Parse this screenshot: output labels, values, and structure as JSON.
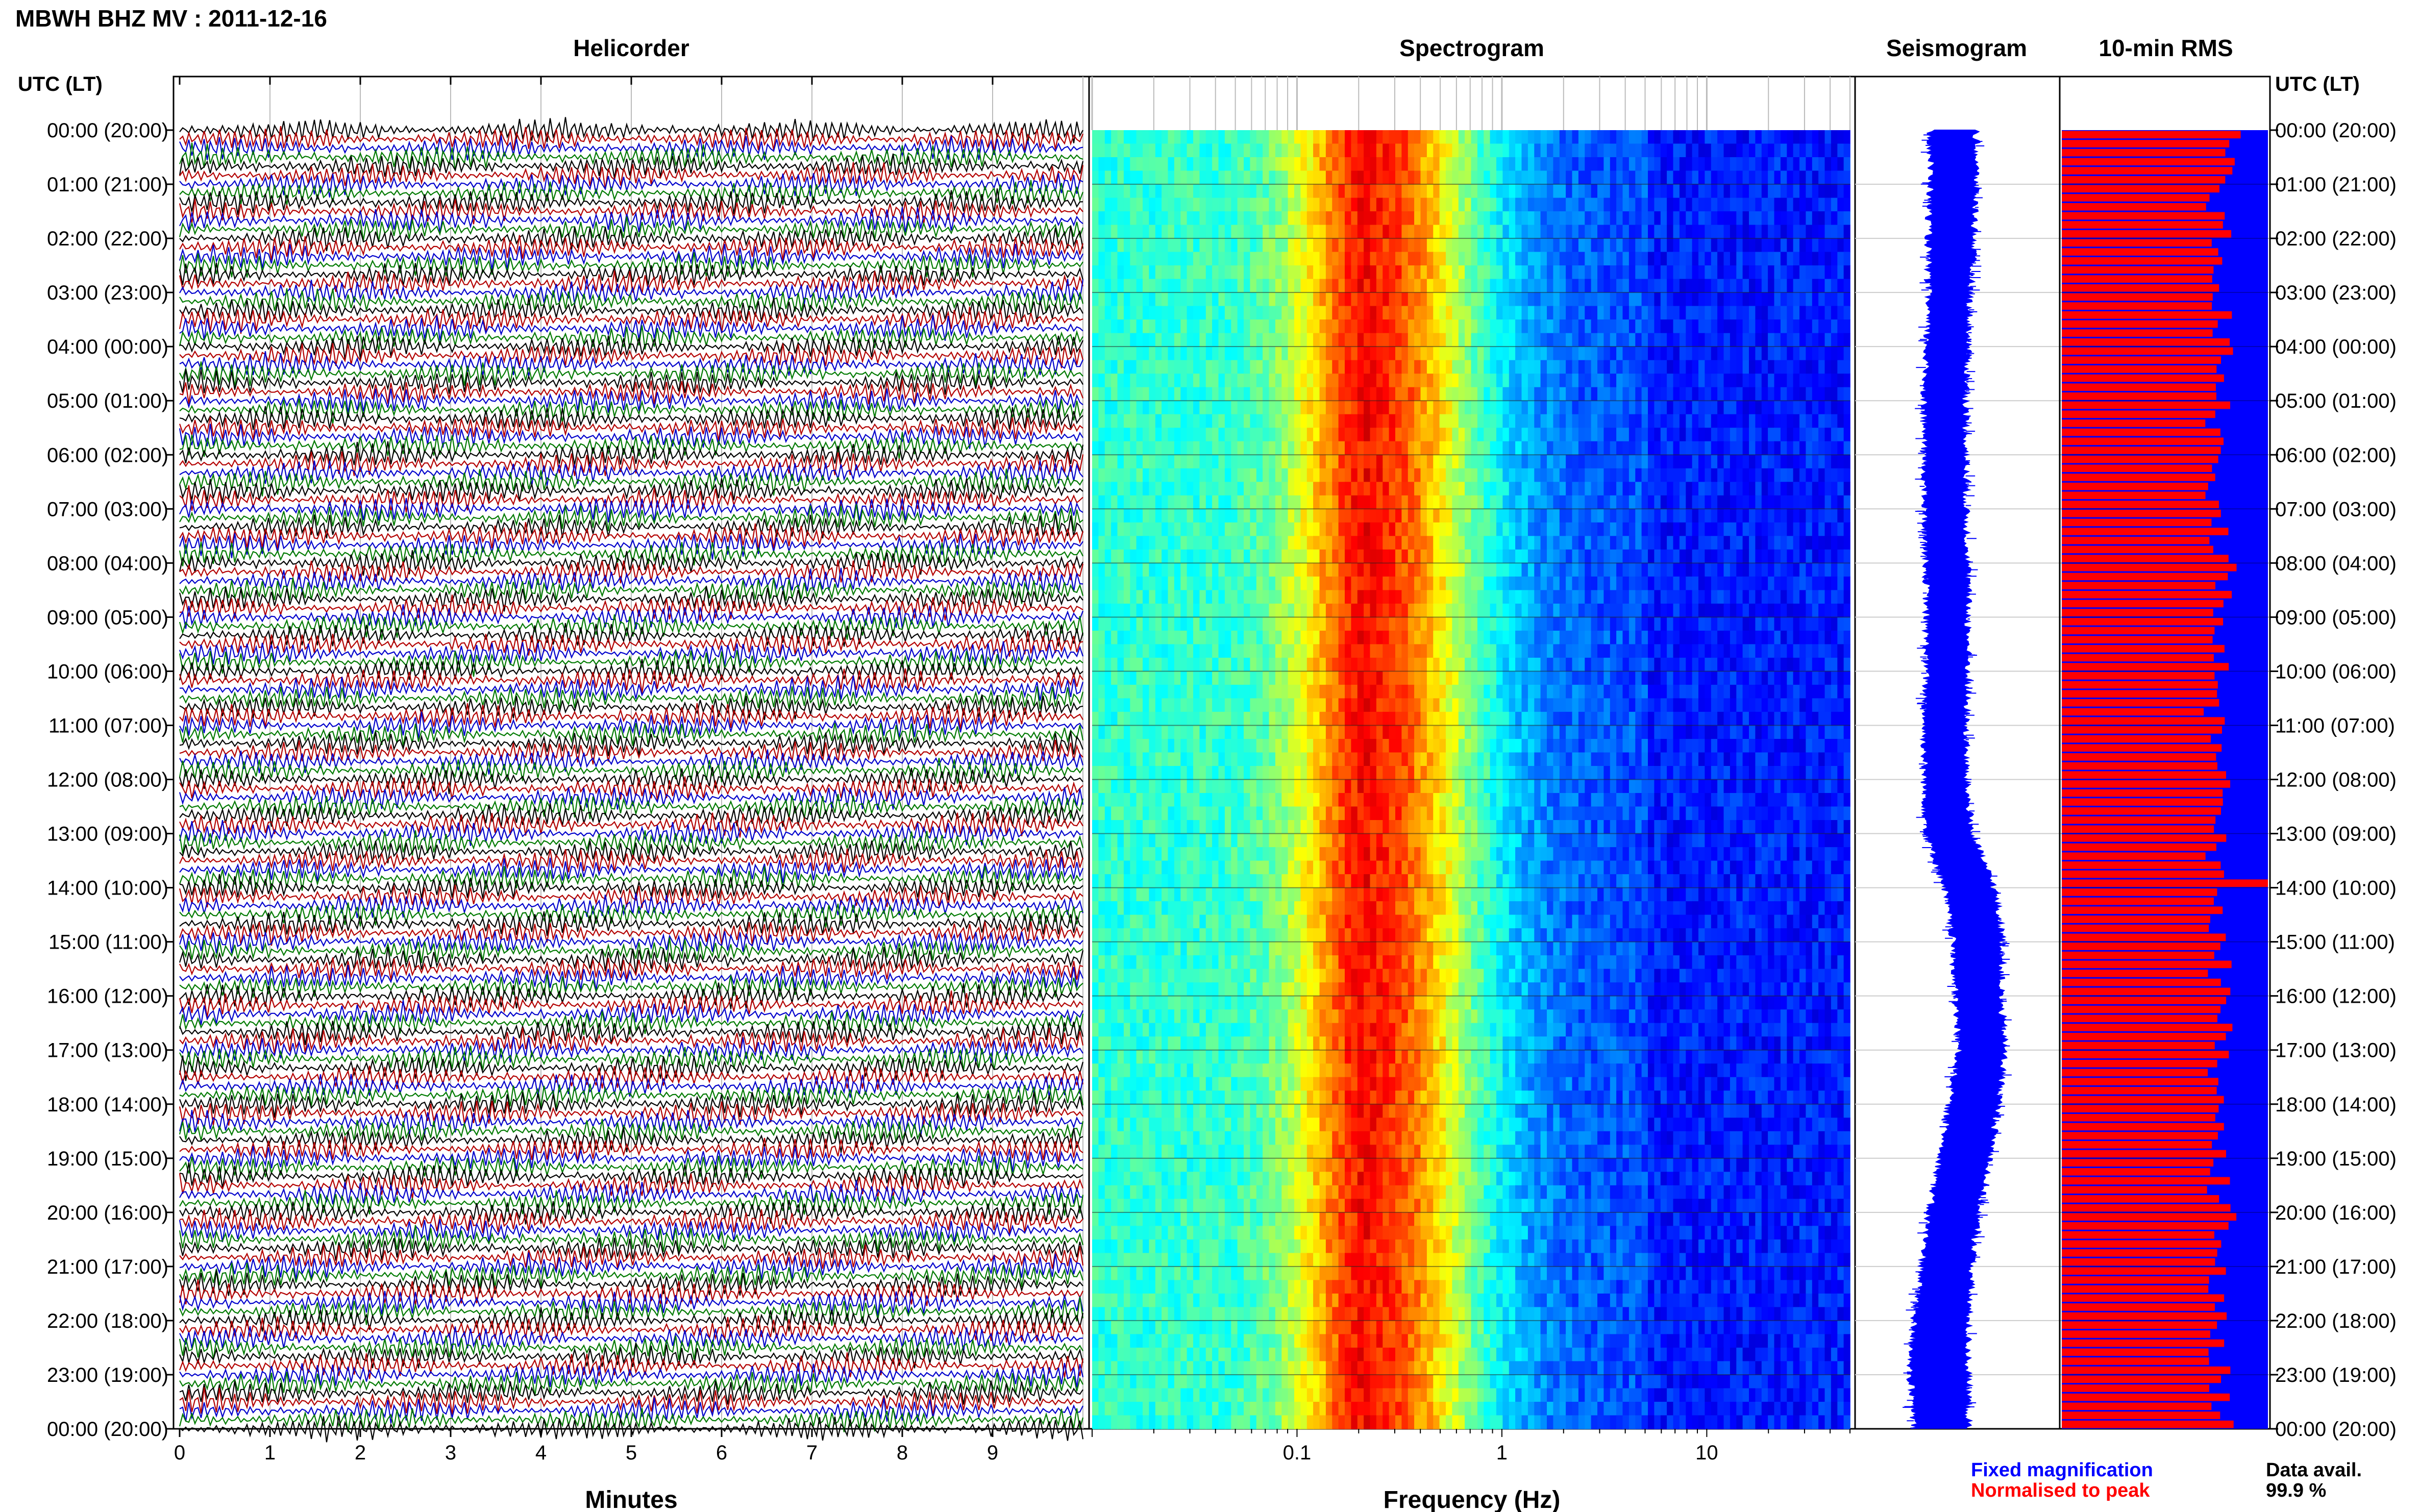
{
  "page": {
    "title": "MBWH BHZ MV : 2011-12-16",
    "panels": [
      "Helicorder",
      "Spectrogram",
      "Seismogram",
      "10-min RMS"
    ],
    "axis_header_left": "UTC (LT)",
    "axis_header_right": "UTC (LT)",
    "legend_fixed": "Fixed magnification",
    "legend_normalised": "Normalised to peak",
    "data_avail_label": "Data avail.",
    "data_avail_value": "99.9 %"
  },
  "colors": {
    "trace_cycle": [
      "#000000",
      "#b30000",
      "#0000cc",
      "#007a00"
    ],
    "fixed_magnification": "#0000ff",
    "normalised_to_peak": "#ff0000"
  },
  "chart_data": [
    {
      "type": "line",
      "panel": "Helicorder",
      "xlabel": "Minutes",
      "x_ticks": [
        "0",
        "1",
        "2",
        "3",
        "4",
        "5",
        "6",
        "7",
        "8",
        "9"
      ],
      "xlim": [
        0,
        10
      ],
      "y_ticks": [
        "00:00 (20:00)",
        "01:00 (21:00)",
        "02:00 (22:00)",
        "03:00 (23:00)",
        "04:00 (00:00)",
        "05:00 (01:00)",
        "06:00 (02:00)",
        "07:00 (03:00)",
        "08:00 (04:00)",
        "09:00 (05:00)",
        "10:00 (06:00)",
        "11:00 (07:00)",
        "12:00 (08:00)",
        "13:00 (09:00)",
        "14:00 (10:00)",
        "15:00 (11:00)",
        "16:00 (12:00)",
        "17:00 (13:00)",
        "18:00 (14:00)",
        "19:00 (15:00)",
        "20:00 (16:00)",
        "21:00 (17:00)",
        "22:00 (18:00)",
        "23:00 (19:00)",
        "00:00 (20:00)"
      ],
      "ylim_hours": [
        0,
        24
      ],
      "rows_per_hour": 6,
      "row_minutes": 10
    },
    {
      "type": "heatmap",
      "panel": "Spectrogram",
      "xlabel": "Frequency (Hz)",
      "x_scale": "log",
      "x_ticks": [
        "0.1",
        "1",
        "10"
      ],
      "xlim_hz": [
        0.01,
        50
      ],
      "peak_band_hz": [
        0.15,
        0.35
      ],
      "ylim_hours": [
        0,
        24
      ]
    },
    {
      "type": "line",
      "panel": "Seismogram",
      "ylim_hours": [
        0,
        24
      ],
      "envelope_hours": [
        0,
        1,
        2,
        3,
        4,
        5,
        6,
        7,
        8,
        9,
        10,
        11,
        12,
        13,
        14,
        15,
        16,
        17,
        18,
        19,
        20,
        21,
        22,
        23,
        24
      ],
      "envelope_center": [
        0.48,
        0.48,
        0.47,
        0.46,
        0.45,
        0.44,
        0.44,
        0.44,
        0.45,
        0.45,
        0.45,
        0.44,
        0.44,
        0.46,
        0.56,
        0.6,
        0.6,
        0.62,
        0.58,
        0.54,
        0.48,
        0.45,
        0.42,
        0.41,
        0.42
      ],
      "envelope_halfwidth": [
        0.11,
        0.11,
        0.11,
        0.1,
        0.1,
        0.1,
        0.1,
        0.1,
        0.1,
        0.1,
        0.1,
        0.1,
        0.1,
        0.11,
        0.12,
        0.12,
        0.11,
        0.11,
        0.12,
        0.12,
        0.12,
        0.12,
        0.13,
        0.14,
        0.13
      ]
    },
    {
      "type": "bar",
      "panel": "10-min RMS",
      "series": [
        {
          "name": "Fixed magnification",
          "values": [
            1.0
          ]
        },
        {
          "name": "Normalised to peak",
          "values": [
            0.82,
            0.78,
            0.76,
            0.8,
            0.77,
            0.75,
            0.79,
            0.74,
            0.72,
            0.78,
            0.76,
            0.8,
            0.75,
            0.73,
            0.77,
            0.74,
            0.71,
            0.79,
            0.76,
            0.74,
            0.8,
            0.73,
            0.75,
            0.81
          ]
        }
      ],
      "ylim_hours": [
        0,
        24
      ],
      "peak_hour": 13.85
    }
  ]
}
